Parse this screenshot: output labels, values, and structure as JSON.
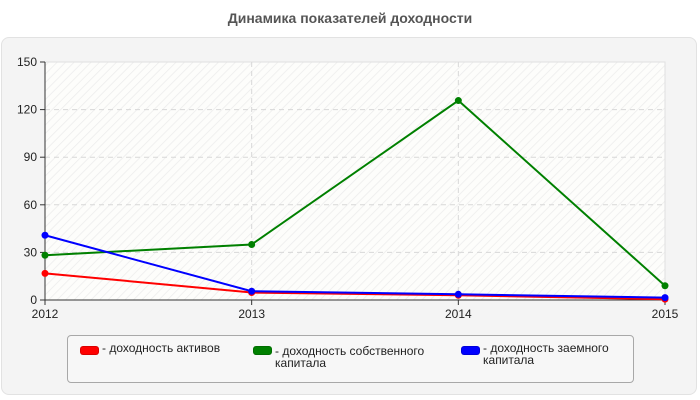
{
  "chart_data": {
    "type": "line",
    "title": "Динамика показателей доходности",
    "xlabel": "",
    "ylabel": "",
    "categories": [
      "2012",
      "2013",
      "2014",
      "2015"
    ],
    "ylim": [
      0,
      150
    ],
    "yticks": [
      0,
      30,
      60,
      90,
      120,
      150
    ],
    "grid": true,
    "legend_position": "bottom",
    "series": [
      {
        "name": "доходность активов",
        "color": "#ff0000",
        "values": [
          16.8,
          4.7,
          3.0,
          0.5
        ]
      },
      {
        "name": "доходность собственного капитала",
        "color": "#008000",
        "values": [
          28.2,
          35.0,
          125.7,
          9.0
        ]
      },
      {
        "name": "доходность заемного капитала",
        "color": "#0000ff",
        "values": [
          40.8,
          5.5,
          3.6,
          1.5
        ]
      }
    ]
  },
  "legend": {
    "items": [
      {
        "label": "- доходность активов",
        "color": "#ff0000"
      },
      {
        "label": "- доходность собственного капитала",
        "color": "#008000"
      },
      {
        "label": "- доходность заемного капитала",
        "color": "#0000ff"
      }
    ]
  }
}
